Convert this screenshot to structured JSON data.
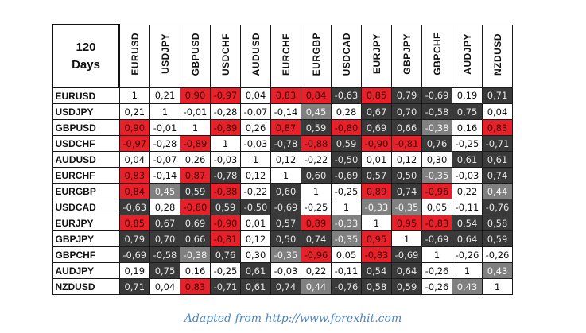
{
  "corner": {
    "line1": "120",
    "line2": "Days"
  },
  "pairs": [
    "EURUSD",
    "USDJPY",
    "GBPUSD",
    "USDCHF",
    "AUDUSD",
    "EURCHF",
    "EURGBP",
    "USDCAD",
    "EURJPY",
    "GBPJPY",
    "GBPCHF",
    "AUDJPY",
    "NZDUSD"
  ],
  "rows": [
    [
      "1",
      "0,21",
      "0,90",
      "-0,97",
      "0,04",
      "0,83",
      "0,84",
      "-0,63",
      "0,85",
      "0,79",
      "-0,69",
      "0,19",
      "0,71"
    ],
    [
      "0,21",
      "1",
      "-0,01",
      "-0,28",
      "-0,07",
      "-0,14",
      "0,45",
      "0,28",
      "0,67",
      "0,70",
      "-0,58",
      "0,75",
      "0,04"
    ],
    [
      "0,90",
      "-0,01",
      "1",
      "-0,89",
      "0,26",
      "0,87",
      "0,59",
      "-0,80",
      "0,69",
      "0,66",
      "-0,38",
      "0,16",
      "0,83"
    ],
    [
      "-0,97",
      "-0,28",
      "-0,89",
      "1",
      "-0,03",
      "-0,78",
      "-0,88",
      "0,59",
      "-0,90",
      "-0,81",
      "0,76",
      "-0,25",
      "-0,71"
    ],
    [
      "0,04",
      "-0,07",
      "0,26",
      "-0,03",
      "1",
      "0,12",
      "-0,22",
      "-0,50",
      "0,01",
      "0,12",
      "0,30",
      "0,61",
      "0,61"
    ],
    [
      "0,83",
      "-0,14",
      "0,87",
      "-0,78",
      "0,12",
      "1",
      "0,60",
      "-0,69",
      "0,57",
      "0,50",
      "-0,35",
      "-0,03",
      "0,74"
    ],
    [
      "0,84",
      "0,45",
      "0,59",
      "-0,88",
      "-0,22",
      "0,60",
      "1",
      "-0,25",
      "0,89",
      "0,74",
      "-0,96",
      "0,22",
      "0,44"
    ],
    [
      "-0,63",
      "0,28",
      "-0,80",
      "0,59",
      "-0,50",
      "-0,69",
      "-0,25",
      "1",
      "-0,33",
      "-0,35",
      "0,05",
      "-0,11",
      "-0,76"
    ],
    [
      "0,85",
      "0,67",
      "0,69",
      "-0,90",
      "0,01",
      "0,57",
      "0,89",
      "-0,33",
      "1",
      "0,95",
      "-0,83",
      "0,54",
      "0,58"
    ],
    [
      "0,79",
      "0,70",
      "0,66",
      "-0,81",
      "0,12",
      "0,50",
      "0,74",
      "-0,35",
      "0,95",
      "1",
      "-0,69",
      "0,64",
      "0,59"
    ],
    [
      "-0,69",
      "-0,58",
      "-0,38",
      "0,76",
      "0,30",
      "-0,35",
      "-0,96",
      "0,05",
      "-0,83",
      "-0,69",
      "1",
      "-0,26",
      "-0,26"
    ],
    [
      "0,19",
      "0,75",
      "0,16",
      "-0,25",
      "0,61",
      "-0,03",
      "0,22",
      "-0,11",
      "0,54",
      "0,64",
      "-0,26",
      "1",
      "0,43"
    ],
    [
      "0,71",
      "0,04",
      "0,83",
      "-0,71",
      "0,61",
      "0,74",
      "0,44",
      "-0,76",
      "0,58",
      "0,59",
      "-0,26",
      "0,43",
      "1"
    ]
  ],
  "styles": [
    [
      "one",
      "pos",
      "red",
      "red",
      "pos",
      "red",
      "red",
      "dark",
      "red",
      "dark",
      "dark",
      "pos",
      "dark"
    ],
    [
      "pos",
      "one",
      "pos",
      "pos",
      "pos",
      "pos",
      "grey",
      "pos",
      "dark",
      "dark",
      "dark",
      "dark",
      "pos"
    ],
    [
      "red",
      "pos",
      "one",
      "red",
      "pos",
      "red",
      "dark",
      "red",
      "dark",
      "dark",
      "grey",
      "pos",
      "red"
    ],
    [
      "red",
      "pos",
      "red",
      "one",
      "pos",
      "dark",
      "red",
      "dark",
      "red",
      "red",
      "dark",
      "pos",
      "dark"
    ],
    [
      "pos",
      "pos",
      "pos",
      "pos",
      "one",
      "pos",
      "pos",
      "dark",
      "pos",
      "pos",
      "pos",
      "dark",
      "dark"
    ],
    [
      "red",
      "pos",
      "red",
      "dark",
      "pos",
      "one",
      "dark",
      "dark",
      "dark",
      "dark",
      "grey",
      "pos",
      "dark"
    ],
    [
      "red",
      "grey",
      "dark",
      "red",
      "pos",
      "dark",
      "one",
      "pos",
      "red",
      "dark",
      "red",
      "pos",
      "grey"
    ],
    [
      "dark",
      "pos",
      "red",
      "dark",
      "dark",
      "dark",
      "pos",
      "one",
      "grey",
      "grey",
      "pos",
      "pos",
      "dark"
    ],
    [
      "red",
      "dark",
      "dark",
      "red",
      "pos",
      "dark",
      "red",
      "grey",
      "one",
      "red",
      "red",
      "dark",
      "dark"
    ],
    [
      "dark",
      "dark",
      "dark",
      "red",
      "pos",
      "dark",
      "dark",
      "grey",
      "red",
      "one",
      "dark",
      "dark",
      "dark"
    ],
    [
      "dark",
      "dark",
      "grey",
      "dark",
      "pos",
      "grey",
      "red",
      "pos",
      "red",
      "dark",
      "one",
      "pos",
      "pos"
    ],
    [
      "pos",
      "dark",
      "pos",
      "pos",
      "dark",
      "pos",
      "pos",
      "pos",
      "dark",
      "dark",
      "pos",
      "one",
      "grey"
    ],
    [
      "dark",
      "pos",
      "red",
      "dark",
      "dark",
      "dark",
      "grey",
      "dark",
      "dark",
      "dark",
      "pos",
      "grey",
      "one"
    ]
  ],
  "colors": {
    "red": "#e8202a",
    "dark": "#3a3a3a",
    "grey": "#808080",
    "white": "#ffffff",
    "caption": "#4a86c5"
  },
  "caption": "Adapted from http://www.forexhit.com"
}
